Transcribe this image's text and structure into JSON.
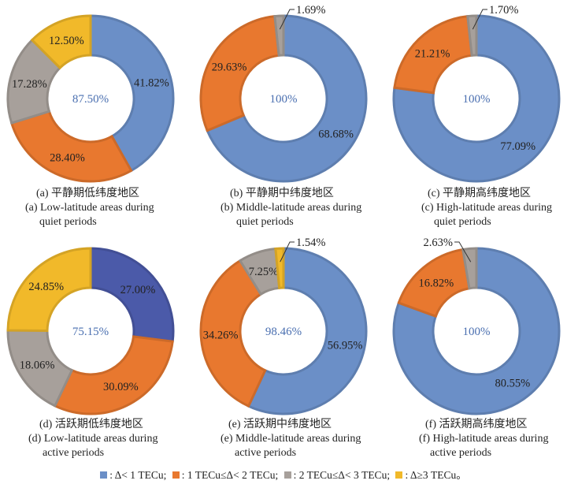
{
  "legend": {
    "items": [
      {
        "key": "lt1",
        "label": ": Δ< 1 TECu;",
        "color": "#6b8fc7"
      },
      {
        "key": "1to2",
        "label": ": 1 TECu≤Δ< 2 TECu;",
        "color": "#e8782f"
      },
      {
        "key": "2to3",
        "label": ": 2 TECu≤Δ< 3 TECu;",
        "color": "#a7a09b"
      },
      {
        "key": "ge3",
        "label": ": Δ≥3 TECu。",
        "color": "#f1b92a"
      }
    ]
  },
  "chart_data": [
    {
      "type": "pie",
      "id": "a",
      "title_cn": "(a) 平静期低纬度地区",
      "title_en_1": "(a) Low-latitude areas during",
      "title_en_2": "quiet periods",
      "center_label": "87.50%",
      "slices": [
        {
          "category": "Δ<1 TECu",
          "value": 41.82,
          "label": "41.82%",
          "color": "#6b8fc7"
        },
        {
          "category": "1≤Δ<2 TECu",
          "value": 28.4,
          "label": "28.40%",
          "color": "#e8782f"
        },
        {
          "category": "2≤Δ<3 TECu",
          "value": 17.28,
          "label": "17.28%",
          "color": "#a7a09b"
        },
        {
          "category": "Δ≥3 TECu",
          "value": 12.5,
          "label": "12.50%",
          "color": "#f1b92a"
        }
      ]
    },
    {
      "type": "pie",
      "id": "b",
      "title_cn": "(b) 平静期中纬度地区",
      "title_en_1": "(b) Middle-latitude areas during",
      "title_en_2": "quiet periods",
      "center_label": "100%",
      "slices": [
        {
          "category": "Δ<1 TECu",
          "value": 68.68,
          "label": "68.68%",
          "color": "#6b8fc7"
        },
        {
          "category": "1≤Δ<2 TECu",
          "value": 29.63,
          "label": "29.63%",
          "color": "#e8782f"
        },
        {
          "category": "2≤Δ<3 TECu",
          "value": 1.69,
          "label": "1.69%",
          "color": "#a7a09b",
          "callout": true
        }
      ]
    },
    {
      "type": "pie",
      "id": "c",
      "title_cn": "(c) 平静期高纬度地区",
      "title_en_1": "(c) High-latitude areas during",
      "title_en_2": "quiet periods",
      "center_label": "100%",
      "slices": [
        {
          "category": "Δ<1 TECu",
          "value": 77.09,
          "label": "77.09%",
          "color": "#6b8fc7"
        },
        {
          "category": "1≤Δ<2 TECu",
          "value": 21.21,
          "label": "21.21%",
          "color": "#e8782f"
        },
        {
          "category": "2≤Δ<3 TECu",
          "value": 1.7,
          "label": "1.70%",
          "color": "#a7a09b",
          "callout": true
        }
      ]
    },
    {
      "type": "pie",
      "id": "d",
      "title_cn": "(d) 活跃期低纬度地区",
      "title_en_1": "(d) Low-latitude areas during",
      "title_en_2": "active periods",
      "center_label": "75.15%",
      "slices": [
        {
          "category": "Δ<1 TECu",
          "value": 27.0,
          "label": "27.00%",
          "color": "#4b5aa9"
        },
        {
          "category": "1≤Δ<2 TECu",
          "value": 30.09,
          "label": "30.09%",
          "color": "#e8782f"
        },
        {
          "category": "2≤Δ<3 TECu",
          "value": 18.06,
          "label": "18.06%",
          "color": "#a7a09b"
        },
        {
          "category": "Δ≥3 TECu",
          "value": 24.85,
          "label": "24.85%",
          "color": "#f1b92a"
        }
      ]
    },
    {
      "type": "pie",
      "id": "e",
      "title_cn": "(e) 活跃期中纬度地区",
      "title_en_1": "(e) Middle-latitude areas during",
      "title_en_2": "active periods",
      "center_label": "98.46%",
      "slices": [
        {
          "category": "Δ<1 TECu",
          "value": 56.95,
          "label": "56.95%",
          "color": "#6b8fc7"
        },
        {
          "category": "1≤Δ<2 TECu",
          "value": 34.26,
          "label": "34.26%",
          "color": "#e8782f"
        },
        {
          "category": "2≤Δ<3 TECu",
          "value": 7.25,
          "label": "7.25%",
          "color": "#a7a09b"
        },
        {
          "category": "Δ≥3 TECu",
          "value": 1.54,
          "label": "1.54%",
          "color": "#f1b92a",
          "callout": true
        }
      ]
    },
    {
      "type": "pie",
      "id": "f",
      "title_cn": "(f) 活跃期高纬度地区",
      "title_en_1": "(f) High-latitude areas during",
      "title_en_2": "active periods",
      "center_label": "100%",
      "slices": [
        {
          "category": "Δ<1 TECu",
          "value": 80.55,
          "label": "80.55%",
          "color": "#6b8fc7"
        },
        {
          "category": "1≤Δ<2 TECu",
          "value": 16.82,
          "label": "16.82%",
          "color": "#e8782f"
        },
        {
          "category": "2≤Δ<3 TECu",
          "value": 2.63,
          "label": "2.63%",
          "color": "#a7a09b",
          "callout": true,
          "callout_side": "left"
        }
      ]
    }
  ]
}
